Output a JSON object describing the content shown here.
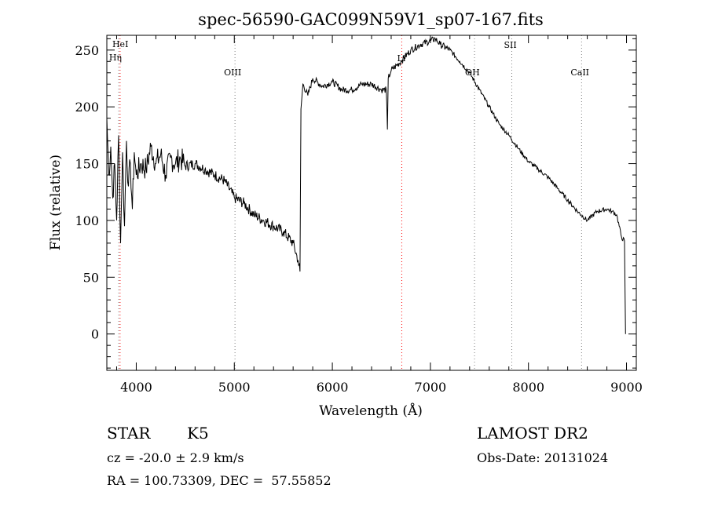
{
  "chart_data": {
    "type": "line",
    "title": "spec-56590-GAC099N59V1_sp07-167.fits",
    "xlabel": "Wavelength (Å)",
    "ylabel": "Flux (relative)",
    "xlim": [
      3700,
      9100
    ],
    "ylim": [
      -32,
      263
    ],
    "xticks": [
      4000,
      5000,
      6000,
      7000,
      8000,
      9000
    ],
    "yticks": [
      0,
      50,
      100,
      150,
      200,
      250
    ],
    "grid": false,
    "legend": "none",
    "line_markers": [
      {
        "label": "HeI",
        "x": 3820,
        "color": "#808080"
      },
      {
        "label": "Hη",
        "x": 3835,
        "color": "#ff0000"
      },
      {
        "label": "OIII",
        "x": 5007,
        "color": "#808080"
      },
      {
        "label": "Li",
        "x": 6708,
        "color": "#ff0000"
      },
      {
        "label": "OH",
        "x": 7450,
        "color": "#808080"
      },
      {
        "label": "SII",
        "x": 7830,
        "color": "#808080"
      },
      {
        "label": "CaII",
        "x": 8542,
        "color": "#808080"
      }
    ],
    "series": [
      {
        "color": "#000000",
        "x": [
          3700,
          3720,
          3740,
          3760,
          3780,
          3800,
          3820,
          3840,
          3860,
          3880,
          3900,
          3920,
          3940,
          3960,
          3980,
          4000,
          4050,
          4100,
          4150,
          4200,
          4250,
          4300,
          4350,
          4400,
          4450,
          4500,
          4600,
          4700,
          4800,
          4900,
          5000,
          5100,
          5200,
          5300,
          5400,
          5500,
          5600,
          5650,
          5670,
          5680,
          5700,
          5750,
          5800,
          5900,
          6000,
          6100,
          6200,
          6300,
          6400,
          6500,
          6550,
          6562,
          6570,
          6600,
          6700,
          6800,
          6900,
          7000,
          7050,
          7100,
          7200,
          7300,
          7400,
          7500,
          7600,
          7700,
          7800,
          7900,
          8000,
          8100,
          8200,
          8300,
          8400,
          8500,
          8600,
          8700,
          8800,
          8850,
          8900,
          8950,
          8980,
          8990
        ],
        "y": [
          190,
          140,
          165,
          120,
          150,
          100,
          175,
          80,
          160,
          95,
          170,
          130,
          150,
          110,
          160,
          140,
          150,
          145,
          165,
          150,
          158,
          140,
          155,
          150,
          155,
          148,
          150,
          145,
          140,
          135,
          120,
          115,
          105,
          100,
          95,
          90,
          80,
          65,
          55,
          198,
          220,
          210,
          225,
          218,
          222,
          215,
          215,
          220,
          220,
          215,
          215,
          180,
          225,
          232,
          240,
          250,
          255,
          258,
          260,
          255,
          250,
          240,
          230,
          215,
          200,
          185,
          175,
          163,
          152,
          145,
          138,
          128,
          118,
          108,
          100,
          108,
          110,
          108,
          105,
          85,
          82,
          0
        ]
      }
    ]
  },
  "info": {
    "class_label": "STAR",
    "subclass": "K5",
    "survey": "LAMOST DR2",
    "redshift": "cz = -20.0 ± 2.9 km/s",
    "obs_date": "Obs-Date: 20131024",
    "coords": "RA = 100.73309, DEC =  57.55852"
  }
}
